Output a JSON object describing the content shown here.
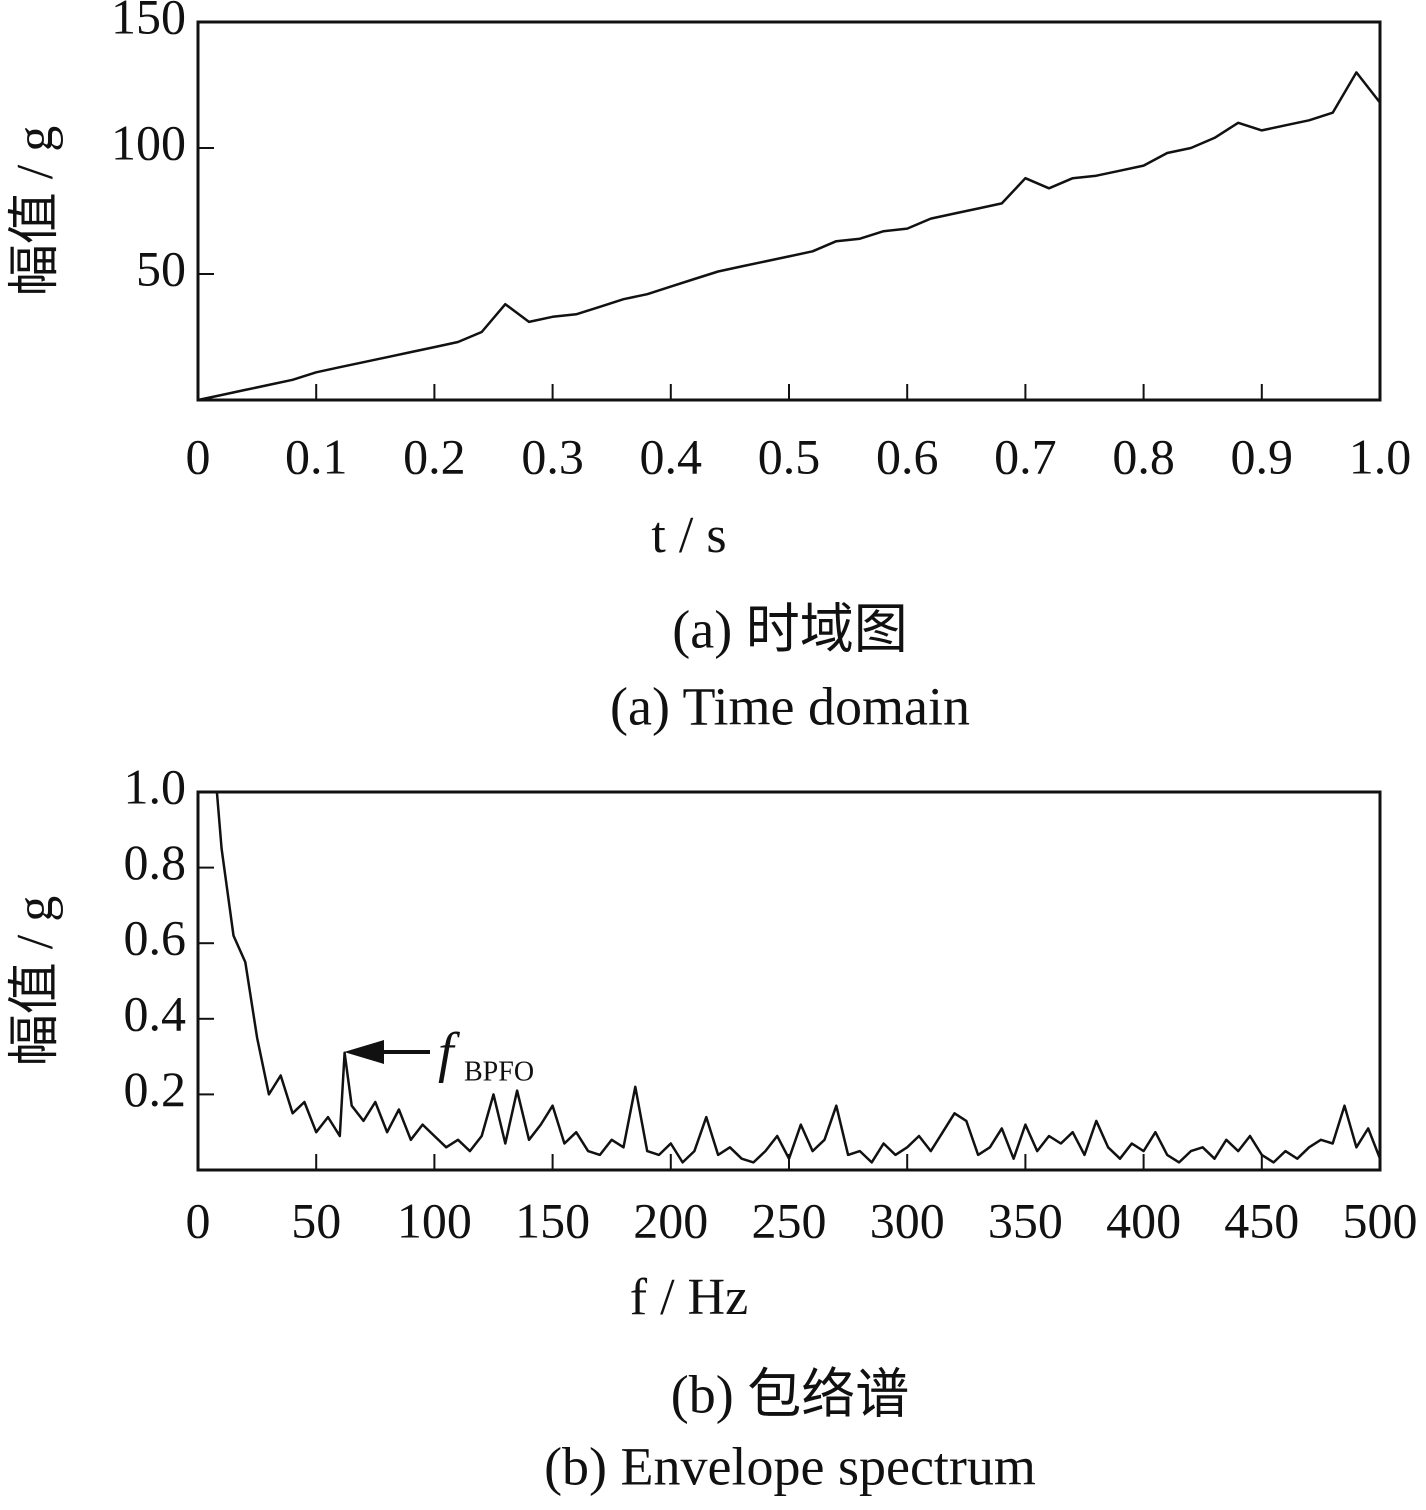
{
  "chart_data": [
    {
      "type": "line",
      "color": "#111111",
      "x": [
        0,
        0.02,
        0.04,
        0.06,
        0.08,
        0.1,
        0.12,
        0.14,
        0.16,
        0.18,
        0.2,
        0.22,
        0.24,
        0.26,
        0.28,
        0.3,
        0.32,
        0.34,
        0.36,
        0.38,
        0.4,
        0.42,
        0.44,
        0.46,
        0.48,
        0.5,
        0.52,
        0.54,
        0.56,
        0.58,
        0.6,
        0.62,
        0.64,
        0.66,
        0.68,
        0.7,
        0.72,
        0.74,
        0.76,
        0.78,
        0.8,
        0.82,
        0.84,
        0.86,
        0.88,
        0.9,
        0.92,
        0.94,
        0.96,
        0.98,
        1.0
      ],
      "values": [
        0,
        2,
        4,
        6,
        8,
        11,
        13,
        15,
        17,
        19,
        21,
        23,
        27,
        38,
        31,
        33,
        34,
        37,
        40,
        42,
        45,
        48,
        51,
        53,
        55,
        57,
        59,
        63,
        64,
        67,
        68,
        72,
        74,
        76,
        78,
        88,
        84,
        88,
        89,
        91,
        93,
        98,
        100,
        104,
        110,
        107,
        109,
        111,
        114,
        130,
        118
      ],
      "xlim": [
        0,
        1
      ],
      "xticks": [
        0,
        0.1,
        0.2,
        0.3,
        0.4,
        0.5,
        0.6,
        0.7,
        0.8,
        0.9,
        {
          "value": 1,
          "label": "1.0"
        }
      ],
      "ylim": [
        0,
        150
      ],
      "yticks": [
        50,
        100,
        150
      ],
      "x_label": "t / s",
      "y_label": "幅值 / g",
      "caption_cn": "(a)  时域图",
      "caption_en": "(a)  Time domain"
    },
    {
      "type": "line",
      "color": "#111111",
      "x": [
        8,
        10,
        15,
        20,
        25,
        30,
        35,
        40,
        45,
        50,
        55,
        60,
        62,
        65,
        70,
        75,
        80,
        85,
        90,
        95,
        100,
        105,
        110,
        115,
        120,
        125,
        130,
        135,
        140,
        145,
        150,
        155,
        160,
        165,
        170,
        175,
        180,
        185,
        190,
        195,
        200,
        205,
        210,
        215,
        220,
        225,
        230,
        235,
        240,
        245,
        250,
        255,
        260,
        265,
        270,
        275,
        280,
        285,
        290,
        295,
        300,
        305,
        310,
        315,
        320,
        325,
        330,
        335,
        340,
        345,
        350,
        355,
        360,
        365,
        370,
        375,
        380,
        385,
        390,
        395,
        400,
        405,
        410,
        415,
        420,
        425,
        430,
        435,
        440,
        445,
        450,
        455,
        460,
        465,
        470,
        475,
        480,
        485,
        490,
        495,
        500
      ],
      "values": [
        1.0,
        0.85,
        0.62,
        0.55,
        0.35,
        0.2,
        0.25,
        0.15,
        0.18,
        0.1,
        0.14,
        0.09,
        0.31,
        0.17,
        0.13,
        0.18,
        0.1,
        0.16,
        0.08,
        0.12,
        0.09,
        0.06,
        0.08,
        0.05,
        0.09,
        0.2,
        0.07,
        0.21,
        0.08,
        0.12,
        0.17,
        0.07,
        0.1,
        0.05,
        0.04,
        0.08,
        0.06,
        0.22,
        0.05,
        0.04,
        0.07,
        0.02,
        0.05,
        0.14,
        0.04,
        0.06,
        0.03,
        0.02,
        0.05,
        0.09,
        0.03,
        0.12,
        0.05,
        0.08,
        0.17,
        0.04,
        0.05,
        0.02,
        0.07,
        0.04,
        0.06,
        0.09,
        0.05,
        0.1,
        0.15,
        0.13,
        0.04,
        0.06,
        0.11,
        0.03,
        0.12,
        0.05,
        0.09,
        0.07,
        0.1,
        0.04,
        0.13,
        0.06,
        0.03,
        0.07,
        0.05,
        0.1,
        0.04,
        0.02,
        0.05,
        0.06,
        0.03,
        0.08,
        0.05,
        0.09,
        0.04,
        0.02,
        0.05,
        0.03,
        0.06,
        0.08,
        0.07,
        0.17,
        0.06,
        0.11,
        0.03
      ],
      "xlim": [
        0,
        500
      ],
      "xticks": [
        0,
        50,
        100,
        150,
        200,
        250,
        300,
        350,
        400,
        450,
        500
      ],
      "ylim": [
        0,
        1
      ],
      "yticks": [
        0.2,
        0.4,
        0.6,
        0.8,
        {
          "value": 1,
          "label": "1.0"
        }
      ],
      "x_label": "f / Hz",
      "y_label": "幅值 / g",
      "annotation": {
        "text": "f",
        "subscript": "BPFO"
      },
      "caption_cn": "(b)  包络谱",
      "caption_en": "(b)  Envelope spectrum"
    }
  ]
}
